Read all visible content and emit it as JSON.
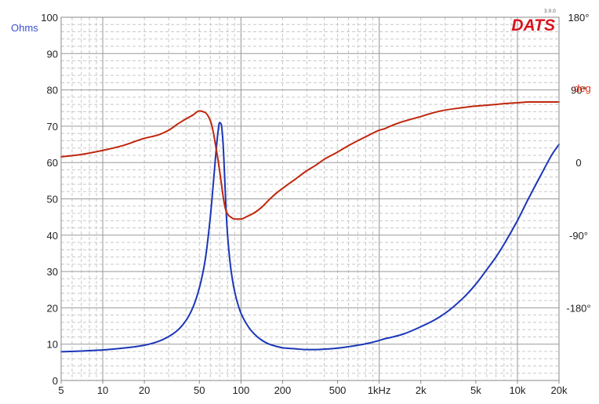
{
  "chart_data": {
    "type": "line",
    "x_scale": "log",
    "xlim": [
      5,
      20000
    ],
    "ylim": [
      0,
      100
    ],
    "y2lim": [
      -270,
      180
    ],
    "x_ticks": [
      5,
      10,
      20,
      50,
      100,
      200,
      500,
      1000,
      2000,
      5000,
      10000,
      20000
    ],
    "x_tick_labels": [
      "5",
      "10",
      "20",
      "50",
      "100",
      "200",
      "500",
      "1kHz",
      "2k",
      "5k",
      "10k",
      "20k"
    ],
    "y_ticks": [
      0,
      10,
      20,
      30,
      40,
      50,
      60,
      70,
      80,
      90,
      100
    ],
    "y_tick_labels": [
      "0",
      "10",
      "20",
      "30",
      "40",
      "50",
      "60",
      "70",
      "80",
      "90",
      "100"
    ],
    "y2_ticks": [
      180,
      90,
      0,
      -90,
      -180
    ],
    "y2_tick_labels": [
      "180°",
      "90°",
      "0",
      "-90°",
      "-180°"
    ],
    "ylabel": "Ohms",
    "y2label": "deg",
    "grid": true,
    "logo": "DATS",
    "logo_version": "3.0.0",
    "colors": {
      "impedance": "#1b36b8",
      "phase": "#c0260c",
      "ohms_label": "#3a4fd0",
      "deg_label": "#d8361e",
      "logo": "#d8141e",
      "grid_major": "#9a9a9a",
      "grid_minor": "#c8c8c8"
    },
    "series": [
      {
        "key": "impedance",
        "axis": "left",
        "x": [
          5,
          7,
          10,
          14,
          20,
          25,
          30,
          35,
          40,
          45,
          50,
          55,
          60,
          63,
          66,
          68,
          70,
          72,
          74,
          76,
          78,
          80,
          85,
          90,
          95,
          100,
          110,
          120,
          140,
          160,
          180,
          200,
          250,
          300,
          350,
          400,
          500,
          600,
          700,
          800,
          1000,
          1100,
          1200,
          1500,
          2000,
          2500,
          3000,
          4000,
          5000,
          6000,
          7000,
          8000,
          10000,
          12000,
          15000,
          18000,
          20000
        ],
        "values": [
          7.9,
          8.1,
          8.4,
          8.9,
          9.7,
          10.7,
          12.1,
          13.9,
          16.5,
          20.2,
          25.5,
          33.0,
          45.0,
          54.0,
          63.0,
          68.0,
          71.0,
          70.5,
          66.0,
          57.0,
          47.0,
          40.0,
          30.0,
          24.5,
          21.0,
          18.5,
          15.5,
          13.5,
          11.2,
          10.0,
          9.4,
          9.0,
          8.7,
          8.5,
          8.5,
          8.6,
          8.9,
          9.3,
          9.7,
          10.1,
          11.0,
          11.5,
          11.8,
          12.8,
          14.8,
          16.6,
          18.5,
          22.5,
          26.5,
          30.5,
          34.0,
          37.5,
          44.0,
          50.0,
          57.0,
          62.5,
          65.0
        ]
      },
      {
        "key": "phase",
        "axis": "right",
        "x": [
          5,
          7,
          10,
          14,
          20,
          25,
          30,
          35,
          40,
          45,
          50,
          55,
          60,
          63,
          66,
          68,
          70,
          72,
          74,
          76,
          78,
          80,
          85,
          90,
          95,
          100,
          110,
          120,
          140,
          160,
          180,
          200,
          250,
          300,
          350,
          400,
          500,
          600,
          700,
          800,
          1000,
          1100,
          1200,
          1500,
          2000,
          2500,
          3000,
          4000,
          5000,
          6000,
          7000,
          8000,
          10000,
          12000,
          15000,
          18000,
          20000
        ],
        "values": [
          7,
          10,
          15,
          21,
          30,
          34,
          40,
          48,
          54,
          59,
          64,
          62,
          52,
          38,
          18,
          5,
          -10,
          -25,
          -40,
          -52,
          -60,
          -64,
          -68,
          -70,
          -70,
          -70,
          -67,
          -64,
          -56,
          -46,
          -38,
          -32,
          -20,
          -10,
          -3,
          4,
          13,
          21,
          27,
          32,
          40,
          42,
          45,
          51,
          57,
          62,
          65,
          68,
          70,
          71,
          72,
          73,
          74,
          75,
          75,
          75,
          75
        ]
      }
    ]
  }
}
